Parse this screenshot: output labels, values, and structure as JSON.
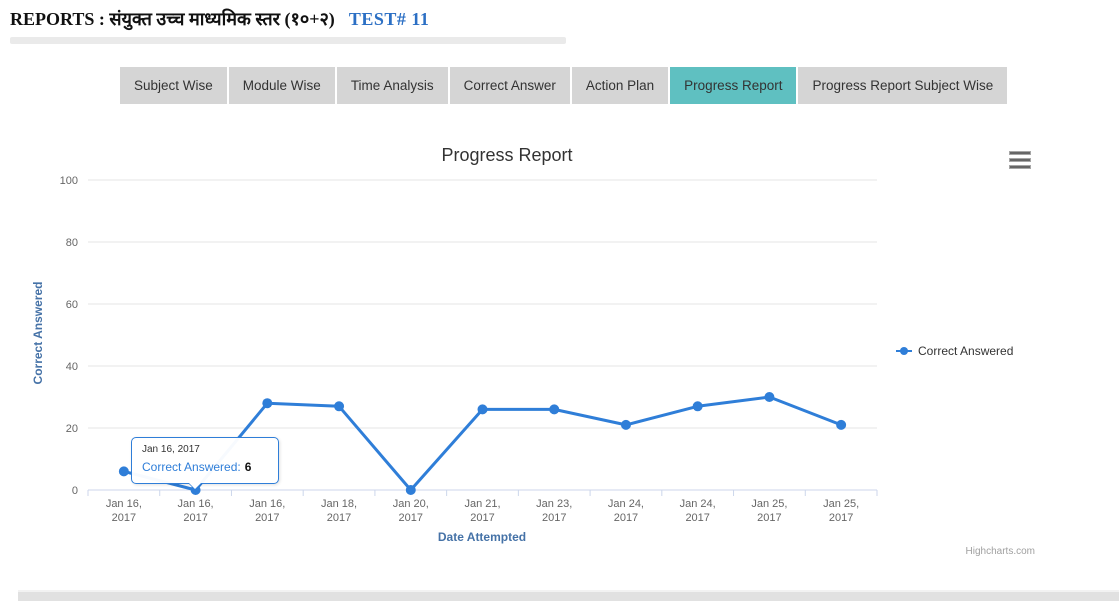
{
  "header": {
    "title": "REPORTS : संयुक्त उच्च माध्यमिक स्तर (१०+२)",
    "test_label": "TEST# 11"
  },
  "tabs": [
    {
      "label": "Subject Wise",
      "active": false
    },
    {
      "label": "Module Wise",
      "active": false
    },
    {
      "label": "Time Analysis",
      "active": false
    },
    {
      "label": "Correct Answer",
      "active": false
    },
    {
      "label": "Action Plan",
      "active": false
    },
    {
      "label": "Progress Report",
      "active": true
    },
    {
      "label": "Progress Report Subject Wise",
      "active": false
    }
  ],
  "chart": {
    "title": "Progress Report",
    "export_menu_icon": "hamburger-icon",
    "credits": "Highcharts.com"
  },
  "chart_data": {
    "type": "line",
    "title": "Progress Report",
    "xlabel": "Date Attempted",
    "ylabel": "Correct Answered",
    "ylim": [
      0,
      100
    ],
    "yticks": [
      0,
      20,
      40,
      60,
      80,
      100
    ],
    "grid": true,
    "legend_position": "right",
    "categories": [
      "Jan 16, 2017",
      "Jan 16, 2017",
      "Jan 16, 2017",
      "Jan 18, 2017",
      "Jan 20, 2017",
      "Jan 21, 2017",
      "Jan 23, 2017",
      "Jan 24, 2017",
      "Jan 24, 2017",
      "Jan 25, 2017",
      "Jan 25, 2017"
    ],
    "series": [
      {
        "name": "Correct Answered",
        "color": "#2f7ed8",
        "values": [
          6,
          0,
          28,
          27,
          0,
          26,
          26,
          21,
          27,
          30,
          21
        ]
      }
    ]
  },
  "tooltip": {
    "date": "Jan 16, 2017",
    "label": "Correct Answered:",
    "value": "6"
  },
  "colors": {
    "series": "#2f7ed8",
    "active_tab": "#5fc0c1",
    "inactive_tab": "#d5d5d5",
    "axis_title": "#4572a7",
    "grid_line": "#e6e6e6",
    "axis_line": "#ccd6eb",
    "tick_label": "#666666"
  }
}
